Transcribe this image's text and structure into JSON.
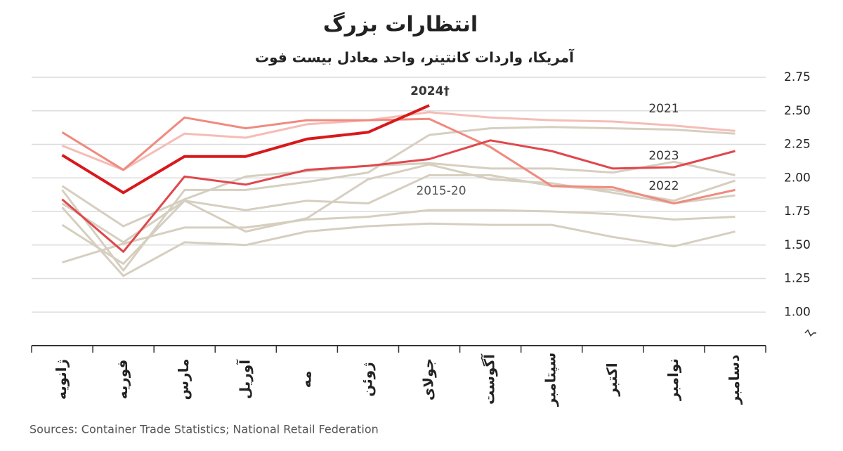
{
  "chart_data": {
    "type": "line",
    "title": "انتظارات بزرگ",
    "subtitle": "آمریکا، واردات کانتینر، واحد معادل بیست فوت",
    "source": "Sources: Container Trade Statistics; National Retail Federation",
    "categories": [
      "ژانویه",
      "فوریه",
      "مارس",
      "آوریل",
      "مه",
      "ژوئن",
      "جولای",
      "آگوست",
      "سپتامبر",
      "اکتبر",
      "نوامبر",
      "دسامبر"
    ],
    "ylim": [
      0.75,
      2.75
    ],
    "yticks": [
      {
        "value": 1,
        "label": "1.00"
      },
      1.25,
      {
        "value": 1.5,
        "label": "1.50"
      },
      1.75,
      {
        "value": 2,
        "label": "2.00"
      },
      2.25,
      {
        "value": 2.5,
        "label": "2.50"
      },
      2.75
    ],
    "grid": true,
    "background_series": {
      "name": "2015-20",
      "color": "#d6cfc0",
      "lines": [
        [
          1.94,
          1.64,
          1.84,
          2.01,
          2.05,
          2.09,
          2.11,
          2.07,
          2.07,
          2.04,
          2.12,
          2.02
        ],
        [
          1.91,
          1.31,
          1.91,
          1.91,
          1.97,
          2.04,
          2.32,
          2.37,
          2.38,
          2.37,
          2.36,
          2.33
        ],
        [
          1.81,
          1.52,
          1.83,
          1.76,
          1.83,
          1.81,
          2.02,
          2.02,
          1.94,
          1.91,
          1.83,
          1.98
        ],
        [
          1.65,
          1.36,
          1.83,
          1.6,
          1.7,
          1.99,
          2.1,
          1.99,
          1.96,
          1.89,
          1.81,
          1.87
        ],
        [
          1.37,
          1.51,
          1.63,
          1.63,
          1.69,
          1.71,
          1.76,
          1.76,
          1.75,
          1.73,
          1.69,
          1.71
        ],
        [
          1.78,
          1.27,
          1.52,
          1.5,
          1.6,
          1.64,
          1.66,
          1.65,
          1.65,
          1.56,
          1.49,
          1.6
        ]
      ]
    },
    "series": [
      {
        "name": "2021",
        "color": "#f6bcb6",
        "values": [
          2.24,
          2.06,
          2.33,
          2.3,
          2.4,
          2.43,
          2.49,
          2.45,
          2.43,
          2.42,
          2.39,
          2.35
        ]
      },
      {
        "name": "2022",
        "color": "#f08a7e",
        "values": [
          2.34,
          2.06,
          2.45,
          2.37,
          2.43,
          2.43,
          2.44,
          2.23,
          1.94,
          1.93,
          1.81,
          1.91
        ]
      },
      {
        "name": "2023",
        "color": "#e0474c",
        "values": [
          1.84,
          1.45,
          2.01,
          1.95,
          2.06,
          2.09,
          2.14,
          2.28,
          2.2,
          2.07,
          2.08,
          2.2
        ]
      },
      {
        "name": "2024†",
        "color": "#d7191c",
        "values": [
          2.17,
          1.89,
          2.16,
          2.16,
          2.29,
          2.34,
          2.54,
          null,
          null,
          null,
          null,
          null
        ]
      }
    ]
  }
}
